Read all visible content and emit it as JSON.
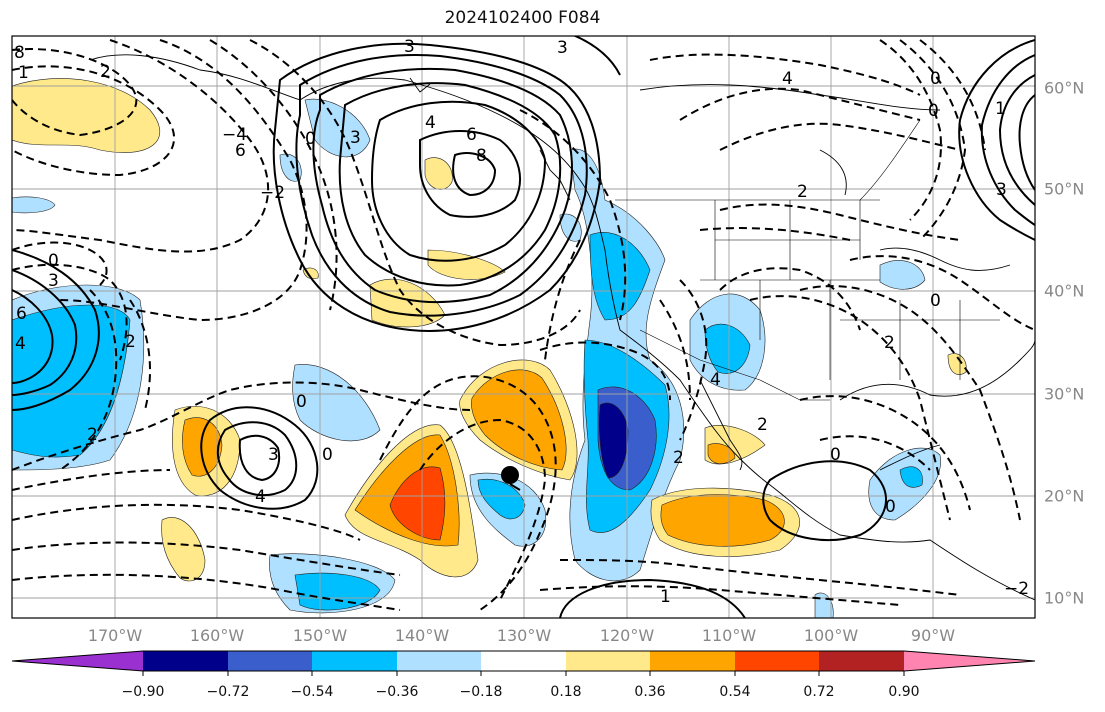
{
  "title": "2024102400 F084",
  "longitude_labels": [
    "170°W",
    "160°W",
    "150°W",
    "140°W",
    "130°W",
    "120°W",
    "110°W",
    "100°W",
    "90°W"
  ],
  "latitude_labels": [
    "60°N",
    "50°N",
    "40°N",
    "30°N",
    "20°N",
    "10°N"
  ],
  "colorbar": {
    "ticks": [
      "−0.90",
      "−0.72",
      "−0.54",
      "−0.36",
      "−0.18",
      "0.18",
      "0.36",
      "0.54",
      "0.72",
      "0.90"
    ],
    "colors": [
      "#9b30d0",
      "#00008b",
      "#3a5fcd",
      "#00bfff",
      "#b0e0ff",
      "#ffffff",
      "#ffe98a",
      "#ffa500",
      "#ff4500",
      "#b22222",
      "#ff85b0"
    ]
  },
  "contour_labels": [
    "3",
    "3",
    "2",
    "4",
    "6",
    "8",
    "2",
    "3",
    "0",
    "−2",
    "−4",
    "6",
    "1",
    "0",
    "2",
    "4",
    "2",
    "3",
    "4",
    "3",
    "0",
    "0",
    "2",
    "0",
    "1",
    "−2",
    "2",
    "4",
    "2",
    "0",
    "0",
    "0",
    "0",
    "1",
    "4",
    "3",
    "6",
    "8"
  ],
  "marker": {
    "name": "storm-center",
    "color": "#000000"
  }
}
